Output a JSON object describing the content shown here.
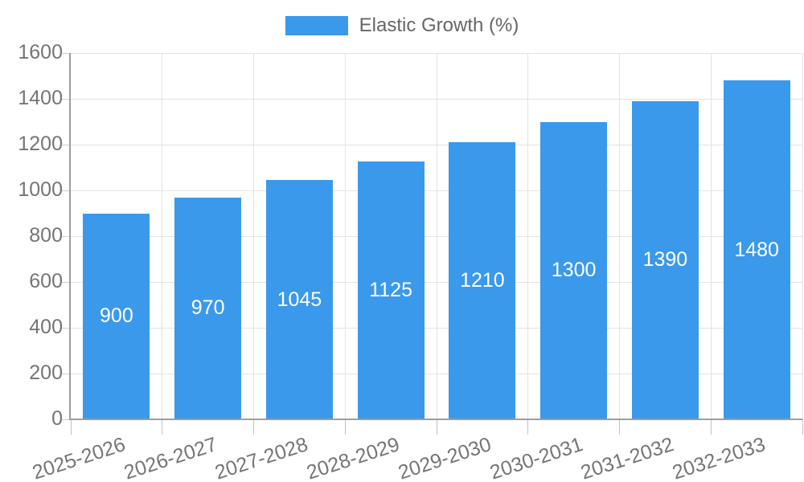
{
  "legend": {
    "label": "Elastic Growth (%)",
    "swatch_color": "#3b99ec"
  },
  "chart_data": {
    "type": "bar",
    "title": "",
    "xlabel": "",
    "ylabel": "",
    "categories": [
      "2025-2026",
      "2026-2027",
      "2027-2028",
      "2028-2029",
      "2029-2030",
      "2030-2031",
      "2031-2032",
      "2032-2033"
    ],
    "series": [
      {
        "name": "Elastic Growth (%)",
        "values": [
          900,
          970,
          1045,
          1125,
          1210,
          1300,
          1390,
          1480
        ]
      }
    ],
    "value_labels": [
      "900",
      "970",
      "1045",
      "1125",
      "1210",
      "1300",
      "1390",
      "1480"
    ],
    "yticks": [
      0,
      200,
      400,
      600,
      800,
      1000,
      1200,
      1400,
      1600
    ],
    "ylim": [
      0,
      1600
    ],
    "grid": "on",
    "legend_position": "top-center",
    "bar_color": "#3b99ec",
    "value_label_color": "#ffffff",
    "axis_text_color": "#757575"
  }
}
